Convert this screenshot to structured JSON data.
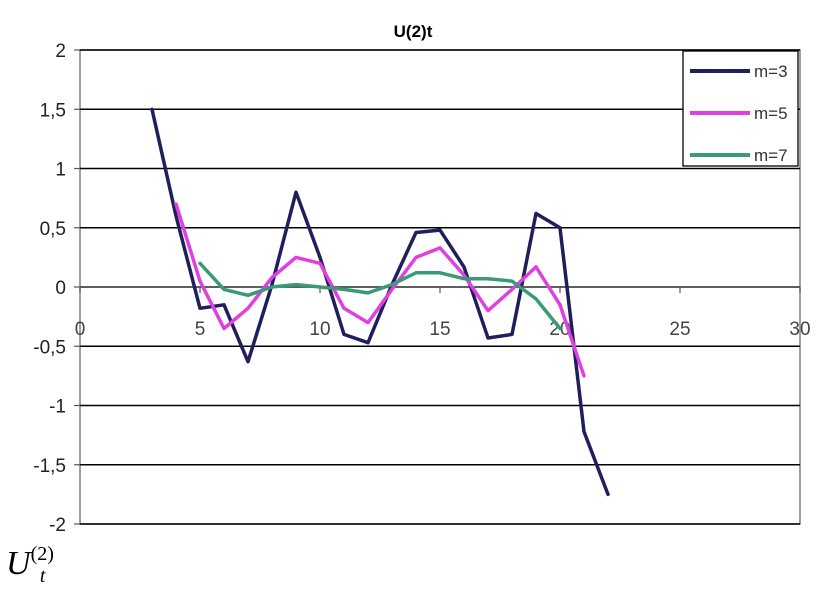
{
  "chart_data": {
    "type": "line",
    "title": "U(2)t",
    "xlabel": "",
    "ylabel": "",
    "xlim": [
      0,
      30
    ],
    "ylim": [
      -2,
      2
    ],
    "x_ticks": [
      "0",
      "5",
      "10",
      "15",
      "20",
      "25",
      "30"
    ],
    "y_ticks": [
      "2",
      "1,5",
      "1",
      "0,5",
      "0",
      "-0,5",
      "-1",
      "-1,5",
      "-2"
    ],
    "grid": "horizontal",
    "legend_position": "top-right",
    "series": [
      {
        "name": "m=3",
        "color": "#1f1f5e",
        "x": [
          3,
          4,
          5,
          6,
          7,
          8,
          9,
          10,
          11,
          12,
          13,
          14,
          15,
          16,
          17,
          18,
          19,
          20,
          21,
          22
        ],
        "y": [
          1.5,
          0.6,
          -0.18,
          -0.15,
          -0.63,
          0.02,
          0.8,
          0.25,
          -0.4,
          -0.47,
          0.02,
          0.46,
          0.48,
          0.17,
          -0.43,
          -0.4,
          0.62,
          0.5,
          -1.22,
          -1.75
        ]
      },
      {
        "name": "m=5",
        "color": "#e040e0",
        "x": [
          4,
          5,
          6,
          7,
          8,
          9,
          10,
          11,
          12,
          13,
          14,
          15,
          16,
          17,
          18,
          19,
          20,
          21
        ],
        "y": [
          0.7,
          0.05,
          -0.35,
          -0.18,
          0.08,
          0.25,
          0.2,
          -0.18,
          -0.3,
          -0.02,
          0.25,
          0.33,
          0.1,
          -0.2,
          -0.02,
          0.17,
          -0.15,
          -0.75
        ]
      },
      {
        "name": "m=7",
        "color": "#3a9a78",
        "x": [
          5,
          6,
          7,
          8,
          9,
          10,
          11,
          12,
          13,
          14,
          15,
          16,
          17,
          18,
          19,
          20
        ],
        "y": [
          0.2,
          -0.02,
          -0.07,
          0.0,
          0.02,
          0.0,
          -0.02,
          -0.05,
          0.02,
          0.12,
          0.12,
          0.07,
          0.07,
          0.05,
          -0.1,
          -0.35
        ]
      }
    ]
  },
  "caption": {
    "base": "U",
    "superscript": "(2)",
    "subscript": "t"
  }
}
